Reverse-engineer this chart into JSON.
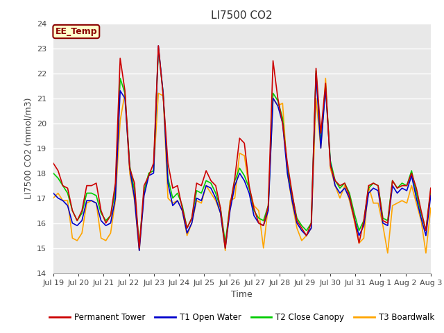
{
  "title": "LI7500 CO2",
  "ylabel": "LI7500 CO2 (mmol/m3)",
  "xlabel": "Time",
  "ylim": [
    14.0,
    24.0
  ],
  "yticks": [
    14.0,
    15.0,
    16.0,
    17.0,
    18.0,
    19.0,
    20.0,
    21.0,
    22.0,
    23.0,
    24.0
  ],
  "xtick_labels": [
    "Jul 19",
    "Jul 20",
    "Jul 21",
    "Jul 22",
    "Jul 23",
    "Jul 24",
    "Jul 25",
    "Jul 26",
    "Jul 27",
    "Jul 28",
    "Jul 29",
    "Jul 30",
    "Jul 31",
    "Aug 1",
    "Aug 2",
    "Aug 3"
  ],
  "figure_bg": "#ffffff",
  "plot_bg_color": "#e8e8e8",
  "annotation_text": "EE_Temp",
  "annotation_bg": "#ffffcc",
  "annotation_border": "#8b0000",
  "annotation_text_color": "#8b0000",
  "colors": {
    "Permanent Tower": "#cc0000",
    "T1 Open Water": "#0000cc",
    "T2 Close Canopy": "#00cc00",
    "T3 Boardwalk": "#ffa500"
  },
  "series": {
    "Permanent Tower": [
      18.4,
      18.1,
      17.5,
      17.4,
      16.5,
      16.1,
      16.5,
      17.5,
      17.5,
      17.6,
      16.5,
      16.0,
      16.3,
      17.6,
      22.6,
      21.3,
      18.2,
      17.6,
      15.0,
      17.5,
      17.9,
      18.4,
      23.1,
      21.1,
      18.4,
      17.4,
      17.5,
      16.6,
      15.8,
      16.2,
      17.6,
      17.5,
      18.1,
      17.7,
      17.5,
      16.6,
      15.0,
      16.7,
      17.8,
      19.4,
      19.2,
      17.5,
      16.6,
      16.0,
      15.9,
      16.7,
      22.5,
      21.0,
      20.0,
      18.4,
      17.2,
      16.1,
      15.8,
      15.5,
      16.0,
      22.2,
      19.6,
      21.6,
      18.3,
      17.7,
      17.5,
      17.6,
      17.1,
      16.2,
      15.2,
      16.1,
      17.5,
      17.6,
      17.5,
      16.1,
      16.0,
      17.7,
      17.4,
      17.5,
      17.5,
      18.0,
      17.4,
      16.5,
      15.7,
      17.4
    ],
    "T1 Open Water": [
      17.2,
      17.0,
      16.9,
      16.7,
      16.0,
      15.9,
      16.1,
      16.9,
      16.9,
      16.8,
      16.1,
      15.9,
      16.0,
      17.0,
      21.3,
      21.0,
      18.2,
      17.0,
      14.9,
      17.1,
      17.9,
      18.0,
      23.1,
      21.2,
      17.6,
      16.7,
      16.9,
      16.5,
      15.6,
      16.0,
      17.0,
      16.9,
      17.5,
      17.4,
      17.0,
      16.4,
      15.0,
      16.5,
      17.5,
      18.0,
      17.7,
      17.2,
      16.3,
      16.0,
      15.9,
      16.5,
      21.0,
      20.7,
      20.0,
      18.0,
      16.9,
      16.0,
      15.7,
      15.5,
      15.8,
      22.0,
      19.0,
      21.4,
      18.4,
      17.5,
      17.2,
      17.4,
      17.0,
      16.2,
      15.5,
      15.9,
      17.2,
      17.4,
      17.3,
      16.0,
      15.9,
      17.5,
      17.2,
      17.4,
      17.3,
      17.9,
      17.0,
      16.2,
      15.5,
      17.1
    ],
    "T2 Close Canopy": [
      18.0,
      17.8,
      17.5,
      17.2,
      16.5,
      16.1,
      16.4,
      17.2,
      17.2,
      17.1,
      16.4,
      16.1,
      16.3,
      17.3,
      21.8,
      21.2,
      18.3,
      17.3,
      15.1,
      17.3,
      18.0,
      18.1,
      23.0,
      21.2,
      17.8,
      17.0,
      17.2,
      16.7,
      15.8,
      16.2,
      17.3,
      17.2,
      17.7,
      17.6,
      17.2,
      16.6,
      15.2,
      16.7,
      17.7,
      18.2,
      17.9,
      17.4,
      16.5,
      16.2,
      16.1,
      16.7,
      21.2,
      20.9,
      20.2,
      18.2,
      17.1,
      16.2,
      15.9,
      15.7,
      16.0,
      22.1,
      19.2,
      21.5,
      18.5,
      17.7,
      17.4,
      17.6,
      17.2,
      16.4,
      15.7,
      16.1,
      17.4,
      17.6,
      17.5,
      16.2,
      16.1,
      17.7,
      17.4,
      17.6,
      17.5,
      18.1,
      17.2,
      16.4,
      15.7,
      17.3
    ],
    "T3 Boardwalk": [
      17.0,
      17.2,
      16.9,
      16.9,
      15.4,
      15.3,
      15.6,
      16.8,
      16.9,
      16.8,
      15.4,
      15.3,
      15.6,
      16.9,
      20.1,
      21.2,
      18.0,
      16.9,
      14.9,
      17.2,
      18.0,
      18.1,
      21.2,
      21.1,
      17.0,
      16.8,
      16.9,
      16.5,
      15.5,
      16.0,
      16.9,
      16.8,
      17.5,
      17.2,
      16.9,
      16.4,
      14.9,
      16.9,
      17.0,
      18.8,
      18.7,
      17.4,
      16.7,
      16.5,
      15.0,
      16.7,
      21.0,
      20.7,
      20.8,
      18.0,
      16.8,
      15.8,
      15.3,
      15.5,
      15.8,
      21.0,
      19.0,
      21.8,
      18.2,
      17.5,
      17.0,
      17.5,
      16.9,
      16.1,
      15.2,
      15.4,
      17.5,
      16.8,
      16.8,
      15.9,
      14.8,
      16.7,
      16.8,
      16.9,
      16.8,
      17.5,
      16.8,
      16.1,
      14.8,
      16.6
    ]
  },
  "title_fontsize": 11,
  "axis_label_fontsize": 9,
  "tick_fontsize": 8,
  "legend_fontsize": 8.5,
  "linewidth": 1.2
}
